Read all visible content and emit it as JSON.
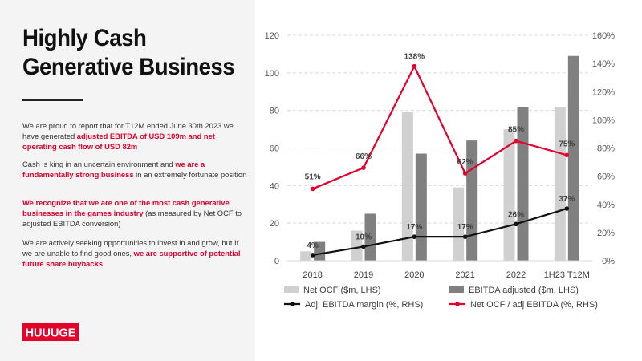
{
  "slide": {
    "title_line1": "Highly Cash",
    "title_line2": "Generative Business",
    "p1_a": "We are proud to report that for T12M ended June 30th 2023 we have generated ",
    "p1_b": "adjusted EBITDA of USD 109m and net operating cash flow of USD 82m",
    "p2_a": "Cash is king in an uncertain environment and ",
    "p2_b": "we are a fundamentally strong business",
    "p2_c": " in an extremely fortunate position",
    "p3_a": "We recognize that we are one of the most cash generative businesses in the games industry",
    "p3_b": " (as measured by Net OCF to adjusted EBITDA conversion)",
    "p4_a": "We are actively seeking opportunities to invest in and grow, but If we are unable to find good ones, ",
    "p4_b": "we are supportive of potential future share buybacks",
    "logo_text": "HUUUGE"
  },
  "colors": {
    "accent": "#e4002b",
    "net_ocf": "#d0d0d0",
    "ebitda": "#808080",
    "margin_line": "#111111",
    "conversion_line": "#e4002b"
  },
  "chart_data": {
    "type": "bar",
    "categories": [
      "2018",
      "2019",
      "2020",
      "2021",
      "2022",
      "1H23 T12M"
    ],
    "series": [
      {
        "name": "Net OCF ($m, LHS)",
        "kind": "bar",
        "axis": "left",
        "values": [
          5,
          16,
          79,
          39,
          70,
          82
        ]
      },
      {
        "name": "EBITDA adjusted ($m, LHS)",
        "kind": "bar",
        "axis": "left",
        "values": [
          10,
          25,
          57,
          64,
          82,
          109
        ]
      },
      {
        "name": "Adj. EBITDA margin (%, RHS)",
        "kind": "line",
        "axis": "right",
        "values": [
          4,
          10,
          17,
          17,
          26,
          37
        ],
        "labels": [
          "4%",
          "10%",
          "17%",
          "17%",
          "26%",
          "37%"
        ]
      },
      {
        "name": "Net OCF / adj EBITDA (%, RHS)",
        "kind": "line",
        "axis": "right",
        "values": [
          51,
          66,
          138,
          62,
          85,
          75
        ],
        "labels": [
          "51%",
          "66%",
          "138%",
          "62%",
          "85%",
          "75%"
        ]
      }
    ],
    "y_left": {
      "min": 0,
      "max": 120,
      "ticks": [
        0,
        20,
        40,
        60,
        80,
        100,
        120
      ]
    },
    "y_right": {
      "min": 0,
      "max": 160,
      "ticks": [
        "0%",
        "20%",
        "40%",
        "60%",
        "80%",
        "100%",
        "120%",
        "140%",
        "160%"
      ]
    },
    "grid": "dashed horizontal",
    "legend_position": "bottom"
  }
}
